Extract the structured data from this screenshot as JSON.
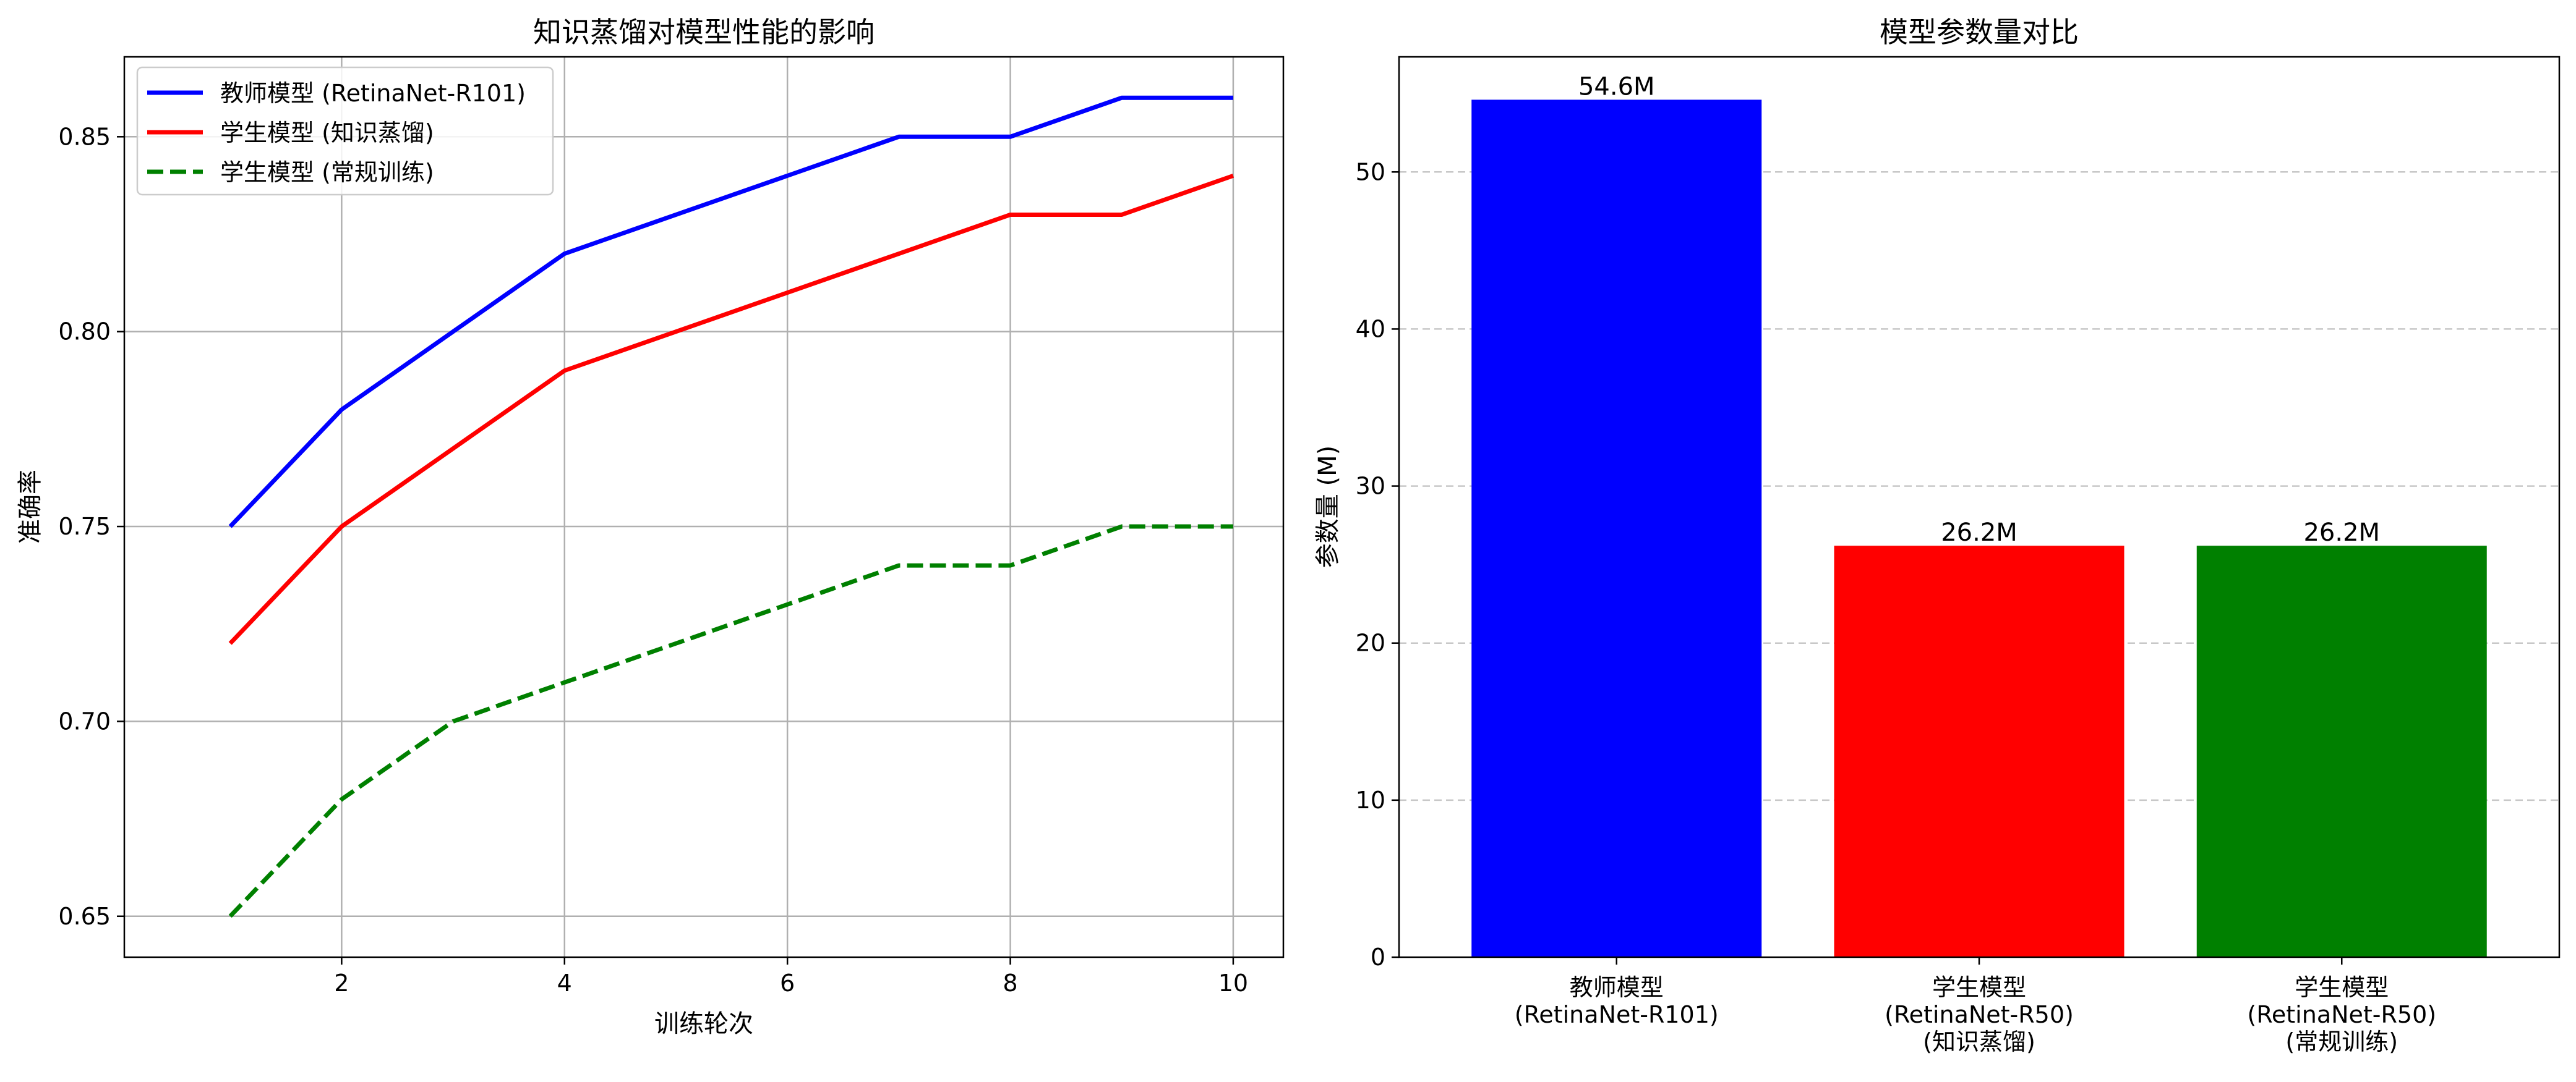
{
  "colors": {
    "teacher": "#0000ff",
    "student_kd": "#ff0000",
    "student_regular": "#008000",
    "grid": "#b0b0b0",
    "axes": "#000000"
  },
  "chart_data": [
    {
      "type": "line",
      "title": "知识蒸馏对模型性能的影响",
      "xlabel": "训练轮次",
      "ylabel": "准确率",
      "x": [
        1,
        2,
        3,
        4,
        5,
        6,
        7,
        8,
        9,
        10
      ],
      "xlim": [
        0.05,
        10.45
      ],
      "ylim": [
        0.6395,
        0.8705
      ],
      "xticks": [
        2,
        4,
        6,
        8,
        10
      ],
      "yticks": [
        0.65,
        0.7,
        0.75,
        0.8,
        0.85
      ],
      "xtick_labels": [
        "2",
        "4",
        "6",
        "8",
        "10"
      ],
      "ytick_labels": [
        "0.65",
        "0.70",
        "0.75",
        "0.80",
        "0.85"
      ],
      "grid": true,
      "legend_position": "top-left",
      "series": [
        {
          "name": "教师模型 (RetinaNet-R101)",
          "color": "#0000ff",
          "style": "solid",
          "values": [
            0.75,
            0.78,
            0.8,
            0.82,
            0.83,
            0.84,
            0.85,
            0.85,
            0.86,
            0.86
          ]
        },
        {
          "name": "学生模型 (知识蒸馏)",
          "color": "#ff0000",
          "style": "solid",
          "values": [
            0.72,
            0.75,
            0.77,
            0.79,
            0.8,
            0.81,
            0.82,
            0.83,
            0.83,
            0.84
          ]
        },
        {
          "name": "学生模型 (常规训练)",
          "color": "#008000",
          "style": "dashed",
          "values": [
            0.65,
            0.68,
            0.7,
            0.71,
            0.72,
            0.73,
            0.74,
            0.74,
            0.75,
            0.75
          ]
        }
      ]
    },
    {
      "type": "bar",
      "title": "模型参数量对比",
      "xlabel": "",
      "ylabel": "参数量 (M)",
      "categories": [
        [
          "教师模型",
          "(RetinaNet-R101)"
        ],
        [
          "学生模型",
          "(RetinaNet-R50)",
          "(知识蒸馏)"
        ],
        [
          "学生模型",
          "(RetinaNet-R50)",
          "(常规训练)"
        ]
      ],
      "values": [
        54.6,
        26.2,
        26.2
      ],
      "value_labels": [
        "54.6M",
        "26.2M",
        "26.2M"
      ],
      "bar_colors": [
        "#0000ff",
        "#ff0000",
        "#008000"
      ],
      "ylim": [
        0,
        57.33
      ],
      "yticks": [
        0,
        10,
        20,
        30,
        40,
        50
      ],
      "ytick_labels": [
        "0",
        "10",
        "20",
        "30",
        "40",
        "50"
      ],
      "grid": "y-dashed"
    }
  ]
}
